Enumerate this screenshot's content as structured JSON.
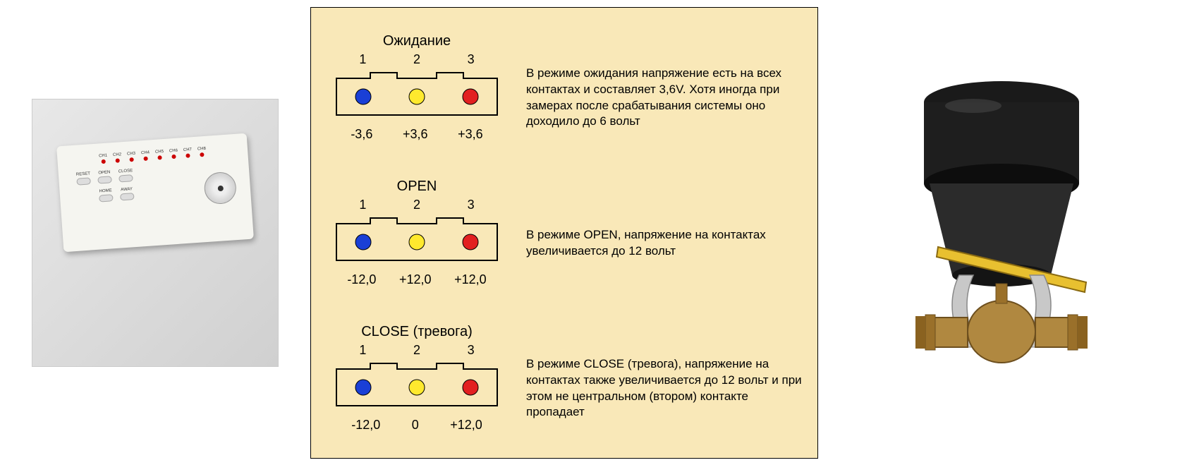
{
  "device": {
    "channels": [
      "CH1",
      "CH2",
      "CH3",
      "CH4",
      "CH5",
      "CH6",
      "CH7",
      "CH8"
    ],
    "buttons_row1": [
      "RESET",
      "OPEN",
      "CLOSE"
    ],
    "buttons_row2": [
      "HOME",
      "AWAY"
    ],
    "led_color": "#cc0000",
    "body_color": "#f5f5f0"
  },
  "panel": {
    "background_color": "#f9e8b8",
    "border_color": "#000000",
    "text_color": "#000000",
    "font_size_title": 20,
    "font_size_body": 17,
    "font_size_labels": 18
  },
  "connector": {
    "pin_labels": [
      "1",
      "2",
      "3"
    ],
    "outline_color": "#000000",
    "outline_width": 2,
    "dot_radius": 11,
    "dot_stroke": "#000000",
    "colors": {
      "pin1": "#1a3fd6",
      "pin2": "#ffe92e",
      "pin3": "#e22020"
    }
  },
  "modes": [
    {
      "title": "Ожидание",
      "voltages": [
        "-3,6",
        "+3,6",
        "+3,6"
      ],
      "description": "В режиме ожидания  напряжение есть на всех контактах и составляет 3,6V. Хотя иногда при замерах после срабатывания системы оно доходило до 6 вольт"
    },
    {
      "title": "OPEN",
      "voltages": [
        "-12,0",
        "+12,0",
        "+12,0"
      ],
      "description": "В режиме OPEN, напряжение на контактах увеличивается до 12 вольт"
    },
    {
      "title": "CLOSE (тревога)",
      "voltages": [
        "-12,0",
        "0",
        "+12,0"
      ],
      "description": "В режиме CLOSE (тревога), напряжение на контактах также увеличивается до 12 вольт и при этом не центральном (втором) контакте пропадает"
    }
  ],
  "valve": {
    "cap_color": "#1a1a1a",
    "body_color": "#2b2b2b",
    "brass_color": "#b08840",
    "brass_dark": "#6d4f1e",
    "handle_color": "#e8c030",
    "clamp_color": "#c8c8c8"
  }
}
